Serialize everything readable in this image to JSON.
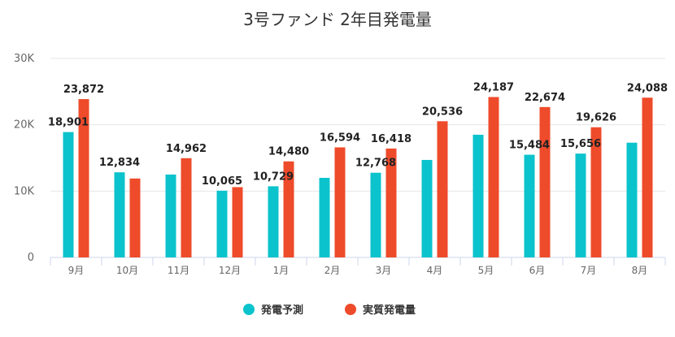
{
  "chart_data": {
    "type": "bar",
    "title": "3号ファンド 2年目発電量",
    "categories": [
      "9月",
      "10月",
      "11月",
      "12月",
      "1月",
      "2月",
      "3月",
      "4月",
      "5月",
      "6月",
      "7月",
      "8月"
    ],
    "series": [
      {
        "name": "発電予測",
        "color": "#0bc3cc",
        "values": [
          18901,
          12834,
          12500,
          10065,
          10729,
          12000,
          12768,
          14700,
          18500,
          15484,
          15656,
          17300
        ],
        "labels": [
          "18,901",
          "12,834",
          "",
          "10,065",
          "10,729",
          "",
          "12,768",
          "",
          "",
          "15,484",
          "15,656",
          ""
        ]
      },
      {
        "name": "実質発電量",
        "color": "#ee4b2b",
        "values": [
          23872,
          11900,
          14962,
          10600,
          14480,
          16594,
          16418,
          20536,
          24187,
          22674,
          19626,
          24088
        ],
        "labels": [
          "23,872",
          "",
          "14,962",
          "",
          "14,480",
          "16,594",
          "16,418",
          "20,536",
          "24,187",
          "22,674",
          "19,626",
          "24,088"
        ]
      }
    ],
    "yticks": [
      "0",
      "10K",
      "20K",
      "30K"
    ],
    "ylim": [
      0,
      30000
    ],
    "grid": true,
    "legend_position": "bottom-center"
  }
}
